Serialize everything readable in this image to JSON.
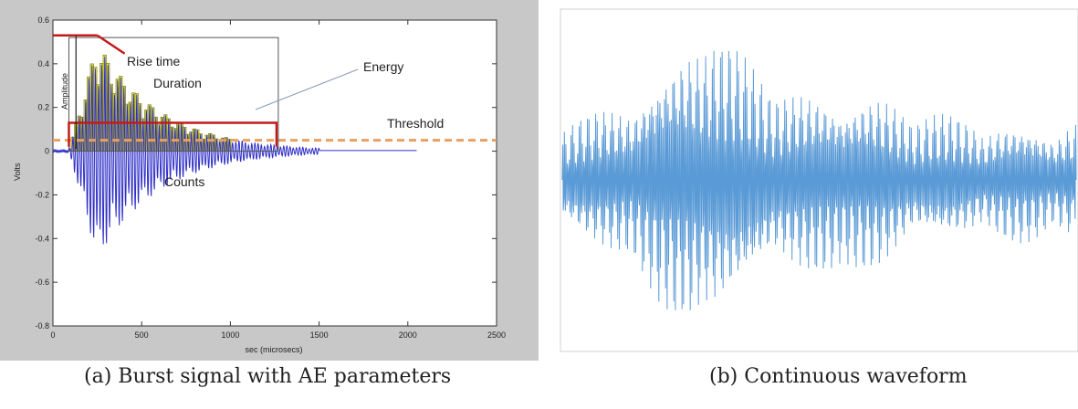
{
  "captions": {
    "a": "(a) Burst signal with AE parameters",
    "b": "(b) Continuous waveform"
  },
  "chart_data": [
    {
      "type": "line",
      "xlabel": "sec (microsecs)",
      "ylabel": "Volts",
      "xlim": [
        0,
        2500
      ],
      "ylim": [
        -0.8,
        0.6
      ],
      "xticks": [
        0,
        500,
        1000,
        1500,
        2000,
        2500
      ],
      "yticks": [
        0.6,
        0.4,
        0.2,
        0,
        -0.2,
        -0.4,
        -0.6,
        -0.8
      ],
      "threshold": 0.05,
      "burst": {
        "start": 90,
        "end": 1500,
        "peak_time": 250,
        "peak": 0.5
      },
      "annotations": [
        "Rise time",
        "Amplitude",
        "Duration",
        "Energy",
        "Threshold",
        "Counts"
      ],
      "colors": {
        "signal": "#2e2ec8",
        "energy_fill": "#f0f03a",
        "marker": "#c41a1a",
        "threshold": "#e8a060",
        "frame_bg": "#c8c8c8"
      }
    },
    {
      "type": "line",
      "duration_units": 1000,
      "amplitude_range": [
        -1,
        1
      ],
      "colors": {
        "signal": "#5a9ad6"
      }
    }
  ]
}
